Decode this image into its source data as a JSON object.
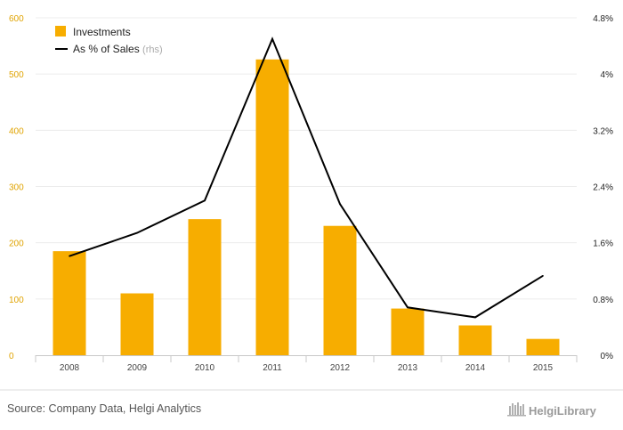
{
  "chart_data": {
    "type": "bar",
    "categories": [
      "2008",
      "2009",
      "2010",
      "2011",
      "2012",
      "2013",
      "2014",
      "2015"
    ],
    "series": [
      {
        "name": "Investments",
        "type": "bar",
        "axis": "left",
        "color": "#f7ad00",
        "values": [
          185,
          110,
          242,
          526,
          230,
          83,
          53,
          29
        ]
      },
      {
        "name": "As % of Sales",
        "name_note": "(rhs)",
        "type": "line",
        "axis": "right",
        "color": "#000000",
        "values": [
          1.41,
          1.74,
          2.2,
          4.5,
          2.15,
          0.68,
          0.54,
          1.13
        ]
      }
    ],
    "ylim_left": [
      0,
      600
    ],
    "yticks_left": [
      "0",
      "100",
      "200",
      "300",
      "400",
      "500",
      "600"
    ],
    "ylim_right": [
      0,
      4.8
    ],
    "yticks_right": [
      "0%",
      "0.8%",
      "1.6%",
      "2.4%",
      "3.2%",
      "4%",
      "4.8%"
    ],
    "grid": true,
    "legend": "top-left"
  },
  "footer": {
    "source": "Source: Company Data, Helgi Analytics",
    "brand": "HelgiLibrary"
  }
}
